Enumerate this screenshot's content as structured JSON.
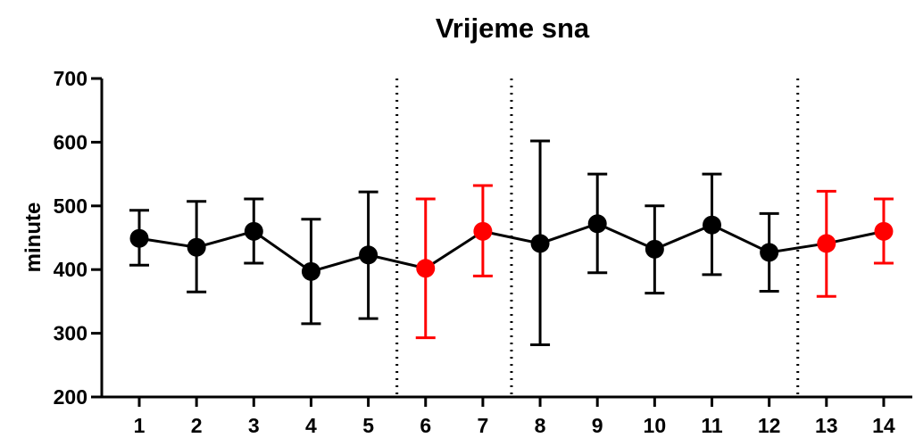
{
  "chart_data": {
    "type": "line",
    "title": "Vrijeme sna",
    "xlabel": "",
    "ylabel": "minute",
    "categories": [
      "1",
      "2",
      "3",
      "4",
      "5",
      "6",
      "7",
      "8",
      "9",
      "10",
      "11",
      "12",
      "13",
      "14"
    ],
    "ylim": [
      200,
      700
    ],
    "yticks": [
      "200",
      "300",
      "400",
      "500",
      "600",
      "700"
    ],
    "series": [
      {
        "values": [
          449,
          435,
          460,
          397,
          423,
          402,
          460,
          441,
          472,
          432,
          470,
          427,
          441,
          460
        ],
        "error_low": [
          407,
          365,
          410,
          315,
          323,
          293,
          390,
          282,
          395,
          363,
          392,
          366,
          358,
          410
        ],
        "error_high": [
          493,
          507,
          511,
          479,
          522,
          511,
          532,
          602,
          550,
          500,
          550,
          488,
          523,
          511
        ],
        "point_colors": [
          "#000000",
          "#000000",
          "#000000",
          "#000000",
          "#000000",
          "#ff0000",
          "#ff0000",
          "#000000",
          "#000000",
          "#000000",
          "#000000",
          "#000000",
          "#ff0000",
          "#ff0000"
        ]
      }
    ],
    "separators_after_category": [
      "5",
      "7",
      "12"
    ],
    "grid": false,
    "legend": "none",
    "colors": {
      "default": "#000000",
      "highlight": "#ff0000"
    }
  }
}
